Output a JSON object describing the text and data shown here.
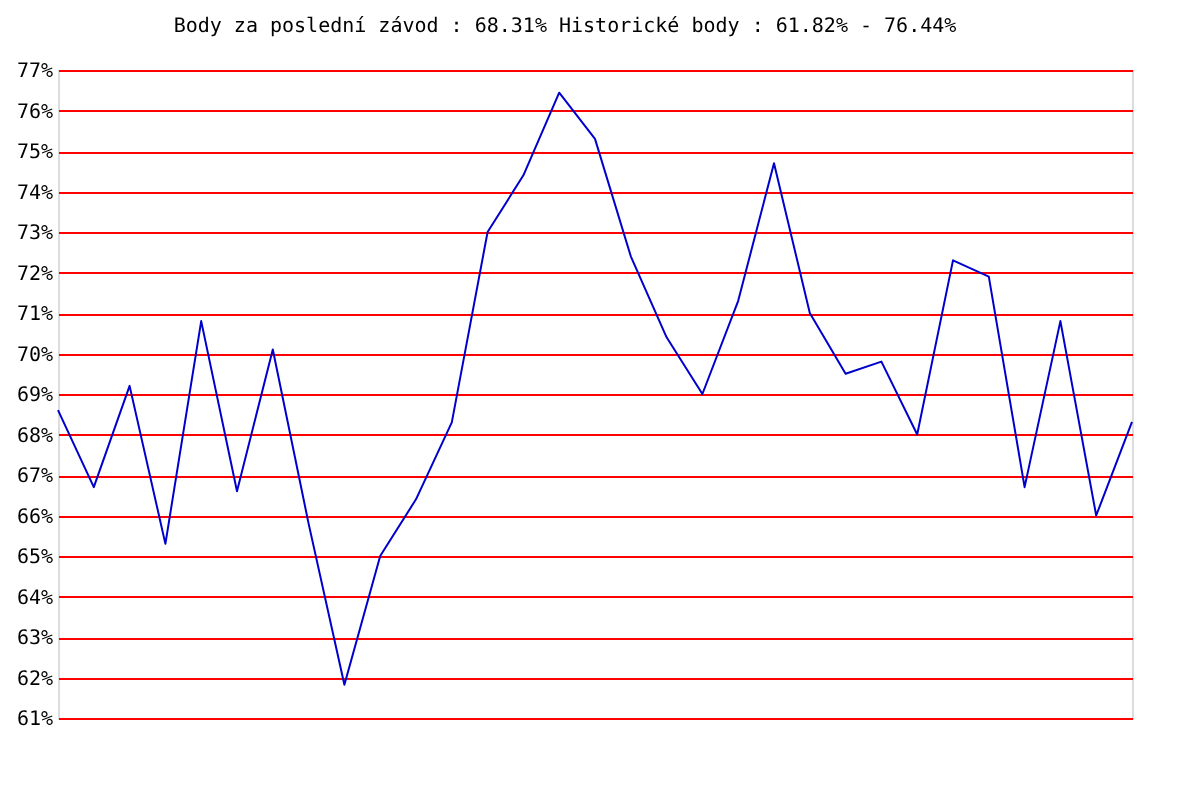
{
  "chart_data": {
    "type": "line",
    "title": "Body za poslední závod : 68.31%  Historické body : 61.82% - 76.44%",
    "categories": [
      null,
      null,
      null,
      null,
      null,
      null,
      null,
      null,
      null,
      null,
      null,
      null,
      null,
      null,
      null,
      null,
      null,
      null,
      null,
      null,
      null,
      null,
      null,
      null,
      null,
      null,
      null,
      null,
      null,
      null,
      null
    ],
    "series": [
      {
        "color": "#0000cc",
        "values": [
          68.6,
          66.7,
          69.2,
          65.3,
          70.8,
          66.6,
          70.1,
          65.8,
          61.82,
          65.0,
          66.4,
          68.3,
          73.0,
          74.4,
          76.44,
          75.3,
          72.4,
          70.4,
          69.0,
          71.3,
          74.7,
          71.0,
          69.5,
          69.8,
          68.0,
          72.3,
          71.9,
          66.7,
          70.8,
          66.0,
          68.31
        ]
      }
    ],
    "ylim": [
      61,
      77
    ],
    "yticks": [
      {
        "value": 61,
        "label": "61%"
      },
      {
        "value": 62,
        "label": "62%"
      },
      {
        "value": 63,
        "label": "63%"
      },
      {
        "value": 64,
        "label": "64%"
      },
      {
        "value": 65,
        "label": "65%"
      },
      {
        "value": 66,
        "label": "66%"
      },
      {
        "value": 67,
        "label": "67%"
      },
      {
        "value": 68,
        "label": "68%"
      },
      {
        "value": 69,
        "label": "69%"
      },
      {
        "value": 70,
        "label": "70%"
      },
      {
        "value": 71,
        "label": "71%"
      },
      {
        "value": 72,
        "label": "72%"
      },
      {
        "value": 73,
        "label": "73%"
      },
      {
        "value": 74,
        "label": "74%"
      },
      {
        "value": 75,
        "label": "75%"
      },
      {
        "value": 76,
        "label": "76%"
      },
      {
        "value": 77,
        "label": "77%"
      }
    ],
    "grid": "y",
    "tick_labels": "y",
    "legend": false,
    "marker": "none",
    "line_style": "solid"
  }
}
